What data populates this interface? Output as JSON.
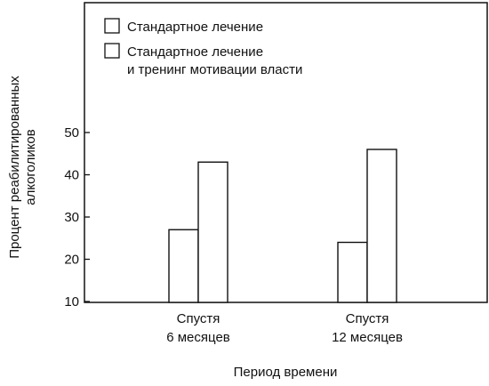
{
  "chart_data": {
    "type": "bar",
    "categories": [
      [
        "Спустя",
        "6 месяцев"
      ],
      [
        "Спустя",
        "12 месяцев"
      ]
    ],
    "series": [
      {
        "name": "Стандартное лечение",
        "values": [
          27,
          24
        ]
      },
      {
        "name": "Стандартное лечение и тренинг мотивации власти",
        "name_lines": [
          "Стандартное лечение",
          "и тренинг мотивации власти"
        ],
        "values": [
          43,
          46
        ]
      }
    ],
    "xlabel": "Период времени",
    "ylabel": [
      "Процент реабилитированных",
      "алкоголиков"
    ],
    "yticks": [
      10,
      20,
      30,
      40,
      50
    ],
    "ylim": [
      0,
      60
    ],
    "legend_position": "top",
    "grid": false,
    "colors": {
      "bar_fill": "#ffffff",
      "stroke": "#111111"
    }
  }
}
